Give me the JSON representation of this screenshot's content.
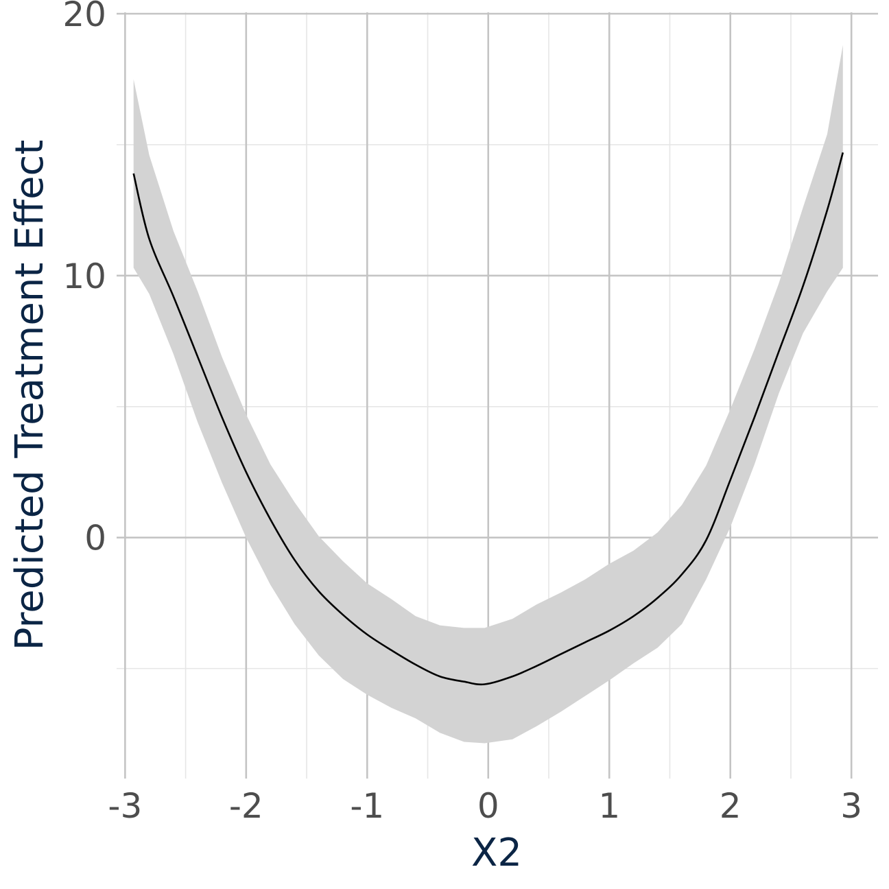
{
  "chart_data": {
    "type": "line",
    "title": "",
    "xlabel": "X2",
    "ylabel": "Predicted Treatment Effect",
    "xlim": [
      -3.07,
      3.22
    ],
    "ylim": [
      -9.2,
      20
    ],
    "x_ticks": [
      -3,
      -2,
      -1,
      0,
      1,
      2,
      3
    ],
    "x_tick_labels": [
      "-3",
      "-2",
      "-1",
      "0",
      "1",
      "2",
      "3"
    ],
    "x_minor_ticks": [
      -2.5,
      -1.5,
      -0.5,
      0.5,
      1.5,
      2.5
    ],
    "y_ticks": [
      0,
      10,
      20
    ],
    "y_tick_labels": [
      "0",
      "10",
      "20"
    ],
    "y_minor_ticks": [
      -5,
      5,
      15
    ],
    "grid": true,
    "legend": "none",
    "colors": {
      "line": "#000000",
      "ribbon": "#d3d3d3",
      "grid_major": "#c4c4c4",
      "grid_minor": "#e6e6e6",
      "tick_text": "#4d4d4d",
      "axis_title": "#0b2545"
    },
    "series": [
      {
        "x": [
          -2.93,
          -2.8,
          -2.6,
          -2.4,
          -2.2,
          -2.0,
          -1.8,
          -1.6,
          -1.4,
          -1.2,
          -1.0,
          -0.8,
          -0.6,
          -0.4,
          -0.2,
          -0.03,
          0.2,
          0.4,
          0.6,
          0.8,
          1.0,
          1.2,
          1.4,
          1.6,
          1.8,
          2.0,
          2.2,
          2.4,
          2.6,
          2.8,
          2.93
        ],
        "y": [
          13.9,
          11.4,
          9.2,
          6.9,
          4.6,
          2.5,
          0.7,
          -0.85,
          -2.05,
          -2.95,
          -3.7,
          -4.3,
          -4.85,
          -5.3,
          -5.5,
          -5.6,
          -5.3,
          -4.9,
          -4.45,
          -4.0,
          -3.55,
          -3.0,
          -2.3,
          -1.4,
          -0.1,
          2.2,
          4.6,
          7.1,
          9.6,
          12.5,
          14.7
        ],
        "lower": [
          10.3,
          9.3,
          7.0,
          4.4,
          2.1,
          0.0,
          -1.8,
          -3.3,
          -4.5,
          -5.4,
          -6.0,
          -6.5,
          -6.9,
          -7.45,
          -7.8,
          -7.85,
          -7.7,
          -7.2,
          -6.65,
          -6.05,
          -5.45,
          -4.8,
          -4.2,
          -3.3,
          -1.6,
          0.4,
          2.8,
          5.5,
          7.8,
          9.4,
          10.3
        ],
        "upper": [
          17.5,
          14.6,
          11.7,
          9.4,
          6.9,
          4.7,
          2.8,
          1.35,
          0.05,
          -0.9,
          -1.75,
          -2.35,
          -3.0,
          -3.35,
          -3.45,
          -3.45,
          -3.1,
          -2.55,
          -2.1,
          -1.6,
          -1.0,
          -0.5,
          0.2,
          1.25,
          2.75,
          4.9,
          7.2,
          9.7,
          12.6,
          15.4,
          18.8
        ]
      }
    ]
  }
}
